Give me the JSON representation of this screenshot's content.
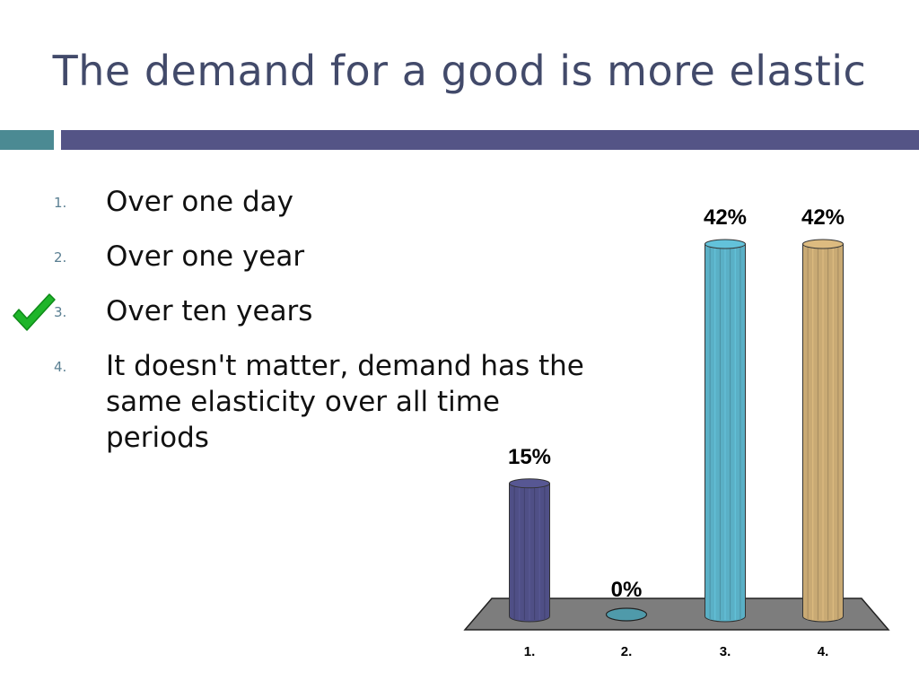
{
  "slide": {
    "title": "The demand for a good is more elastic"
  },
  "options": [
    {
      "num": "1.",
      "text": "Over one day"
    },
    {
      "num": "2.",
      "text": "Over one year"
    },
    {
      "num": "3.",
      "text": "Over ten years"
    },
    {
      "num": "4.",
      "text": "It doesn't matter, demand has the same elasticity over all time periods"
    }
  ],
  "correct_answer_index": 3,
  "chart_data": {
    "type": "bar",
    "categories": [
      "1.",
      "2.",
      "3.",
      "4."
    ],
    "values": [
      15,
      0,
      42,
      42
    ],
    "value_labels": [
      "15%",
      "0%",
      "42%",
      "42%"
    ],
    "colors": [
      "#4f4f86",
      "#4f9aaa",
      "#5ab0c6",
      "#c9aa74"
    ],
    "ylim": [
      0,
      42
    ],
    "title": "",
    "xlabel": "",
    "ylabel": "",
    "grid": false
  }
}
